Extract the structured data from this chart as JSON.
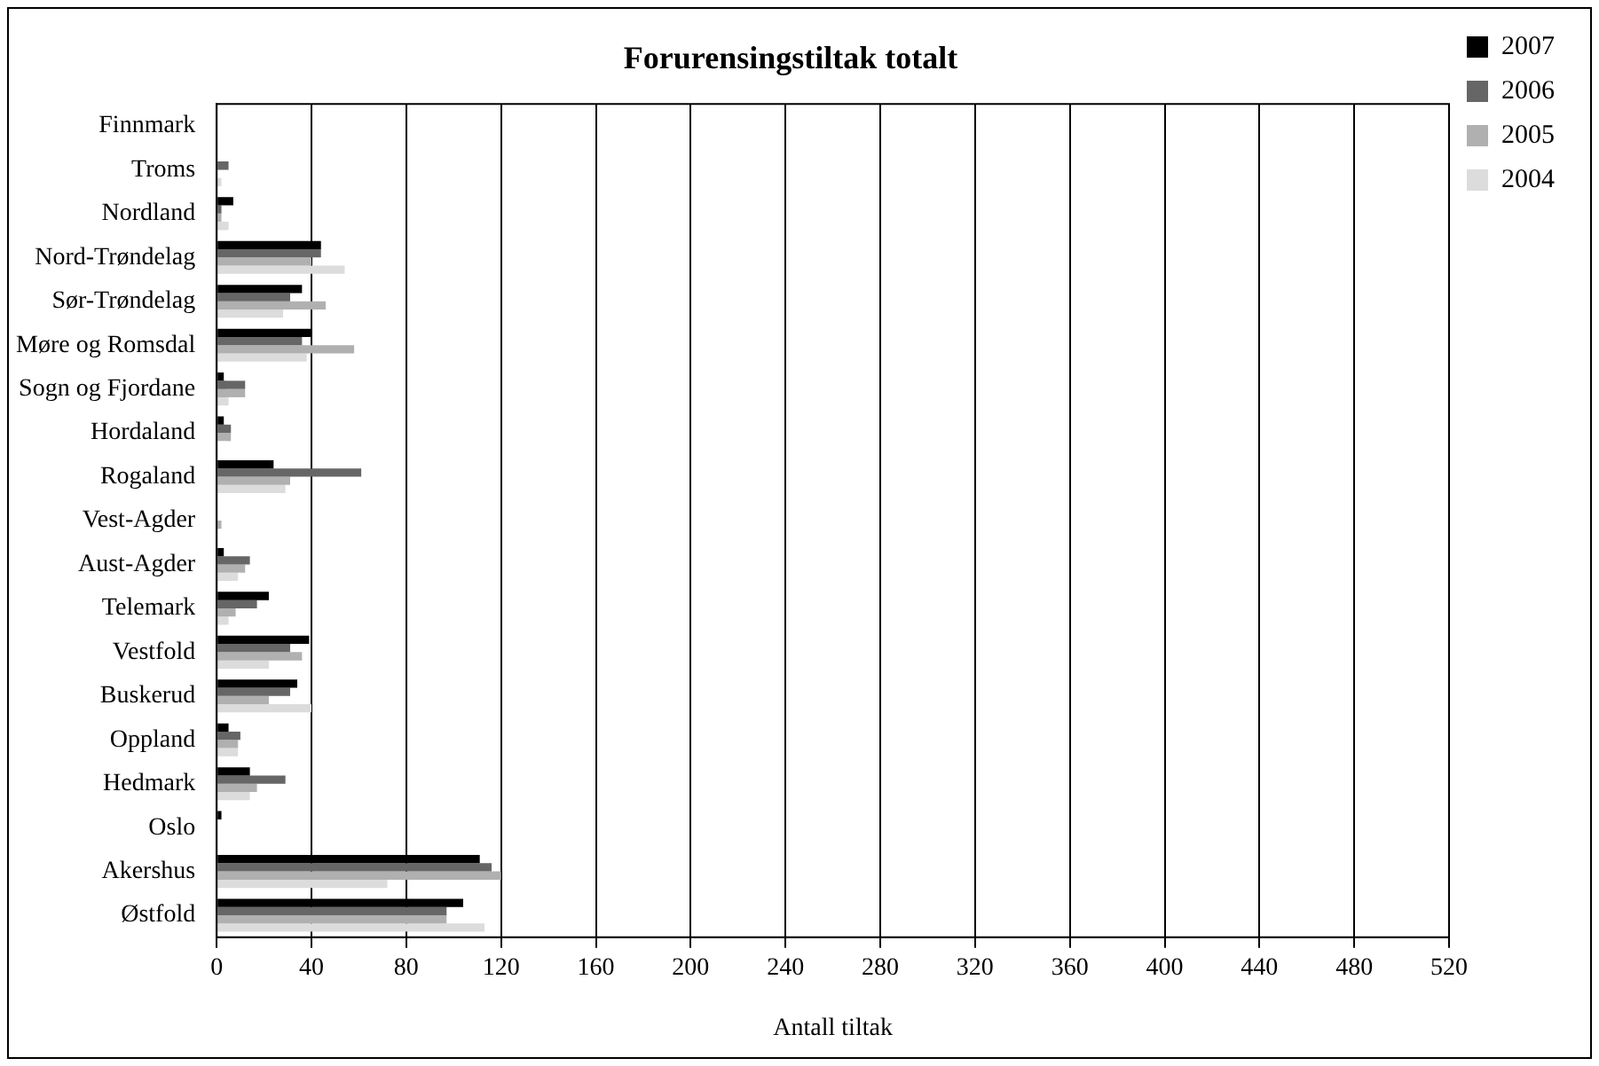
{
  "chart_data": {
    "type": "bar",
    "orientation": "horizontal",
    "title": "Forurensingstiltak totalt",
    "xlabel": "Antall tiltak",
    "categories": [
      "Finnmark",
      "Troms",
      "Nordland",
      "Nord-Trøndelag",
      "Sør-Trøndelag",
      "Møre og Romsdal",
      "Sogn og Fjordane",
      "Hordaland",
      "Rogaland",
      "Vest-Agder",
      "Aust-Agder",
      "Telemark",
      "Vestfold",
      "Buskerud",
      "Oppland",
      "Hedmark",
      "Oslo",
      "Akershus",
      "Østfold"
    ],
    "series": [
      {
        "name": "2007",
        "color": "#000000",
        "values": [
          0,
          0,
          7,
          44,
          36,
          40,
          3,
          3,
          24,
          0,
          3,
          22,
          39,
          34,
          5,
          14,
          2,
          111,
          104
        ]
      },
      {
        "name": "2006",
        "color": "#666666",
        "values": [
          0,
          5,
          2,
          44,
          31,
          36,
          12,
          6,
          61,
          0,
          14,
          17,
          31,
          31,
          10,
          29,
          0,
          116,
          97
        ]
      },
      {
        "name": "2005",
        "color": "#b0b0b0",
        "values": [
          0,
          0,
          2,
          40,
          46,
          58,
          12,
          6,
          31,
          2,
          12,
          8,
          36,
          22,
          9,
          17,
          0,
          120,
          97
        ]
      },
      {
        "name": "2004",
        "color": "#dcdcdc",
        "values": [
          0,
          2,
          5,
          54,
          28,
          38,
          5,
          0,
          29,
          0,
          9,
          5,
          22,
          40,
          9,
          14,
          0,
          72,
          113
        ]
      }
    ],
    "xlim": [
      0,
      520
    ],
    "xticks": [
      0,
      40,
      80,
      120,
      160,
      200,
      240,
      280,
      320,
      360,
      400,
      440,
      480,
      520
    ],
    "grid": "x",
    "legend": "top right"
  }
}
